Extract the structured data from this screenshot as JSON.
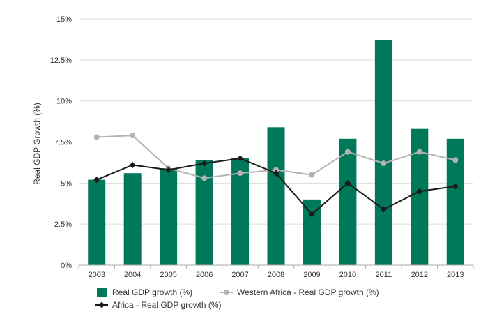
{
  "chart_data": {
    "type": "bar",
    "ylabel": "Real GDP Growth (%)",
    "xlabel": "",
    "title": "",
    "ylim": [
      0,
      15
    ],
    "yticks": [
      0,
      2.5,
      5,
      7.5,
      10,
      12.5,
      15
    ],
    "ytick_labels": [
      "0%",
      "2.5%",
      "5%",
      "7.5%",
      "10%",
      "12.5%",
      "15%"
    ],
    "grid": true,
    "legend_position": "bottom",
    "categories": [
      "2003",
      "2004",
      "2005",
      "2006",
      "2007",
      "2008",
      "2009",
      "2010",
      "2011",
      "2012",
      "2013"
    ],
    "series": [
      {
        "name": "Real GDP growth (%)",
        "kind": "bar",
        "color": "#00785a",
        "values": [
          5.2,
          5.6,
          5.9,
          6.4,
          6.5,
          8.4,
          4.0,
          7.7,
          13.7,
          8.3,
          7.7
        ]
      },
      {
        "name": "Western Africa - Real GDP growth (%)",
        "kind": "line",
        "marker": "circle",
        "color": "#b3b3b3",
        "values": [
          7.8,
          7.9,
          5.9,
          5.3,
          5.6,
          5.8,
          5.5,
          6.9,
          6.2,
          6.9,
          6.4
        ]
      },
      {
        "name": "Africa - Real GDP growth (%)",
        "kind": "line",
        "marker": "diamond",
        "color": "#1a1a1a",
        "values": [
          5.2,
          6.1,
          5.8,
          6.2,
          6.5,
          5.6,
          3.1,
          5.0,
          3.4,
          4.5,
          4.8
        ]
      }
    ]
  }
}
